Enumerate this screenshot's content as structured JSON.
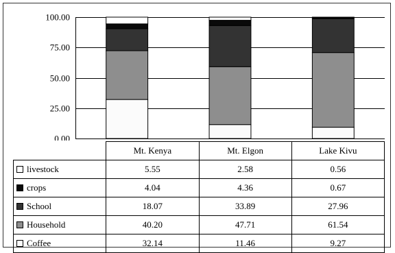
{
  "chart_data": {
    "type": "bar",
    "stacked": true,
    "categories": [
      "Mt. Kenya",
      "Mt. Elgon",
      "Lake Kivu"
    ],
    "series": [
      {
        "name": "Coffee",
        "color": "#fbfbfb",
        "values": [
          32.14,
          11.46,
          9.27
        ]
      },
      {
        "name": "Household",
        "color": "#8e8e8e",
        "values": [
          40.2,
          47.71,
          61.54
        ]
      },
      {
        "name": "School",
        "color": "#333333",
        "values": [
          18.07,
          33.89,
          27.96
        ]
      },
      {
        "name": "crops",
        "color": "#0a0a0a",
        "values": [
          4.04,
          4.36,
          0.67
        ]
      },
      {
        "name": "livestock",
        "color": "#ffffff",
        "values": [
          5.55,
          2.58,
          0.56
        ]
      }
    ],
    "table_row_order": [
      "livestock",
      "crops",
      "School",
      "Household",
      "Coffee"
    ],
    "title": "",
    "xlabel": "",
    "ylabel": "",
    "ylim": [
      0,
      100
    ],
    "yticks": [
      "0.00",
      "25.00",
      "50.00",
      "75.00",
      "100.00"
    ],
    "grid": true,
    "legend": "data table below chart"
  }
}
